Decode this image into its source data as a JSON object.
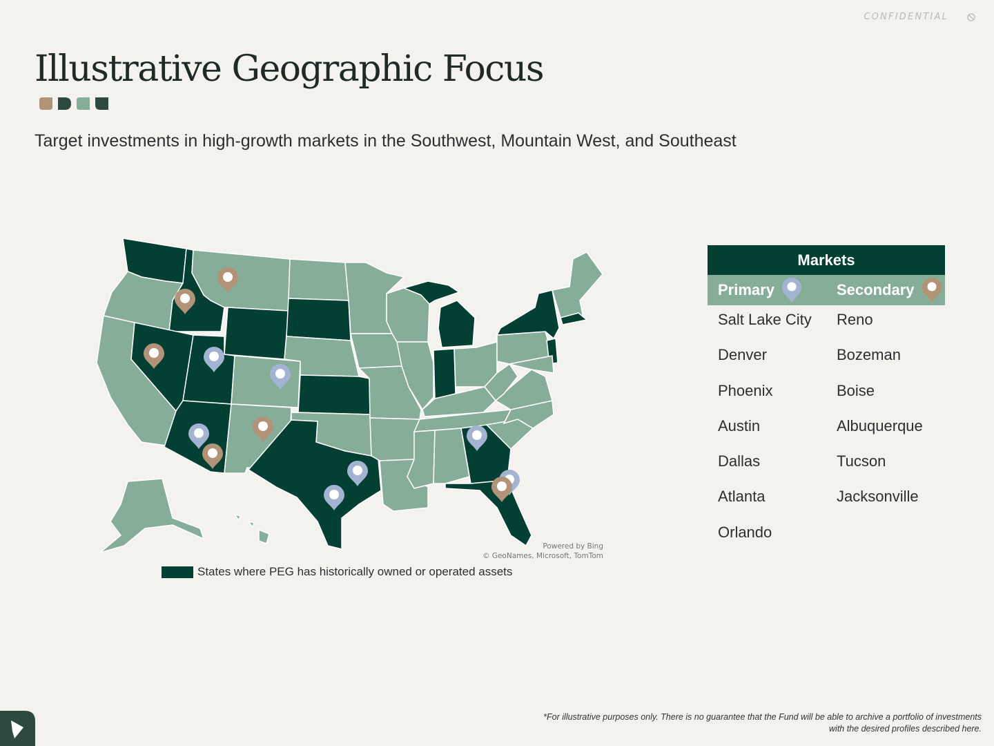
{
  "header": {
    "confidential": "CONFIDENTIAL",
    "title": "Illustrative Geographic Focus",
    "subtitle": "Target investments in high-growth markets in the Southwest, Mountain West, and Southeast"
  },
  "colors": {
    "primary_state": "#043f33",
    "other_state": "#86ad97",
    "primary_pin": "#a3b4d3",
    "secondary_pin": "#b19478",
    "background": "#f3f2ee"
  },
  "map": {
    "attribution_line1": "Powered by Bing",
    "attribution_line2": "© GeoNames,  Microsoft, TomTom",
    "legend_label": "States where PEG has historically owned or operated assets",
    "primary_pin_icon": "map-pin-icon",
    "secondary_pin_icon": "map-pin-icon"
  },
  "markets": {
    "title": "Markets",
    "primary_label": "Primary",
    "secondary_label": "Secondary",
    "primary": [
      "Salt Lake City",
      "Denver",
      "Phoenix",
      "Austin",
      "Dallas",
      "Atlanta",
      "Orlando"
    ],
    "secondary": [
      "Reno",
      "Bozeman",
      "Boise",
      "Albuquerque",
      "Tucson",
      "Jacksonville"
    ]
  },
  "footnote": {
    "line1": "*For illustrative purposes only. There is no guarantee that the Fund will be able to archive a portfolio of investments",
    "line2": "with the desired profiles described here."
  }
}
